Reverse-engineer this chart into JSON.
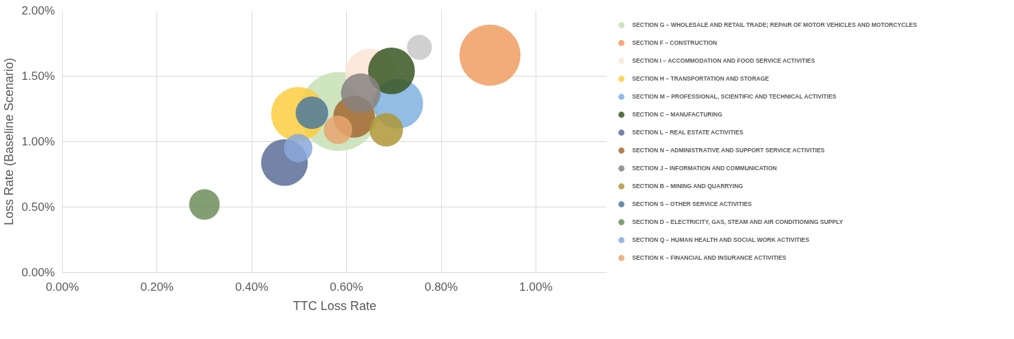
{
  "chart_data": {
    "type": "bubble",
    "xlabel": "TTC Loss Rate",
    "ylabel": "Loss Rate (Baseline Scenario)",
    "xlim": [
      0,
      1.15
    ],
    "ylim": [
      0,
      2
    ],
    "xticks": [
      {
        "value": 0,
        "label": "0.00%"
      },
      {
        "value": 0.2,
        "label": "0.20%"
      },
      {
        "value": 0.4,
        "label": "0.40%"
      },
      {
        "value": 0.6,
        "label": "0.60%"
      },
      {
        "value": 0.8,
        "label": "0.80%"
      },
      {
        "value": 1.0,
        "label": "1.00%"
      }
    ],
    "yticks": [
      {
        "value": 0,
        "label": "0.00%"
      },
      {
        "value": 0.5,
        "label": "0.50%"
      },
      {
        "value": 1.0,
        "label": "1.00%"
      },
      {
        "value": 1.5,
        "label": "1.50%"
      },
      {
        "value": 2.0,
        "label": "2.00%"
      }
    ],
    "grid": true,
    "legend": "right",
    "series": [
      {
        "name": "SECTION G – WHOLESALE AND RETAIL TRADE; REPAIR OF MOTOR VEHICLES AND MOTORCYCLES",
        "color": "#c5e0b4",
        "x": [
          0.584
        ],
        "values": [
          1.23
        ],
        "sizes": [
          1
        ]
      },
      {
        "name": "SECTION F – CONSTRUCTION",
        "color": "#f09d62",
        "x": [
          0.903
        ],
        "values": [
          1.66
        ],
        "sizes": [
          0.6
        ]
      },
      {
        "name": "SECTION I – ACCOMMODATION AND FOOD SERVICE ACTIVITIES",
        "color": "#fbe5d6",
        "x": [
          0.65
        ],
        "values": [
          1.52
        ],
        "sizes": [
          0.4
        ]
      },
      {
        "name": "SECTION H – TRANSPORTATION AND STORAGE",
        "color": "#fdcd3f",
        "x": [
          0.498
        ],
        "values": [
          1.21
        ],
        "sizes": [
          0.47
        ]
      },
      {
        "name": "SECTION M – PROFESSIONAL, SCIENTIFIC AND TECHNICAL ACTIVITIES",
        "color": "#7fb2e0",
        "x": [
          0.709
        ],
        "values": [
          1.29
        ],
        "sizes": [
          0.4
        ]
      },
      {
        "name": "SECTION C – MANUFACTURING",
        "color": "#385723",
        "x": [
          0.695
        ],
        "values": [
          1.54
        ],
        "sizes": [
          0.35
        ]
      },
      {
        "name": "SECTION L – REAL ESTATE ACTIVITIES",
        "color": "#5b6f99",
        "x": [
          0.469
        ],
        "values": [
          0.84
        ],
        "sizes": [
          0.35
        ]
      },
      {
        "name": "SECTION N – ADMINISTRATIVE AND SUPPORT SERVICE ACTIVITIES",
        "color": "#a46831",
        "x": [
          0.616
        ],
        "values": [
          1.19
        ],
        "sizes": [
          0.28
        ]
      },
      {
        "name": "SECTION J – INFORMATION AND COMMUNICATION",
        "color": "#878380",
        "x": [
          0.63
        ],
        "values": [
          1.37
        ],
        "sizes": [
          0.25
        ]
      },
      {
        "name": "SECTION B – MINING AND QUARRYING",
        "color": "#ae9737",
        "x": [
          0.684
        ],
        "values": [
          1.09
        ],
        "sizes": [
          0.18
        ]
      },
      {
        "name": "SECTION S – OTHER SERVICE ACTIVITIES",
        "color": "#4e7a9e",
        "x": [
          0.527
        ],
        "values": [
          1.22
        ],
        "sizes": [
          0.17
        ]
      },
      {
        "name": "SECTION D – ELECTRICITY, GAS, STEAM AND AIR CONDITIONING SUPPLY",
        "color": "#6f8d5c",
        "x": [
          0.3
        ],
        "values": [
          0.52
        ],
        "sizes": [
          0.15
        ]
      },
      {
        "name": "SECTION Q – HUMAN HEALTH AND SOCIAL WORK ACTIVITIES",
        "color": "#8aa8dc",
        "x": [
          0.498
        ],
        "values": [
          0.95
        ],
        "sizes": [
          0.13
        ]
      },
      {
        "name": "SECTION K – FINANCIAL AND INSURANCE ACTIVITIES",
        "color": "#e8a670",
        "x": [
          0.582
        ],
        "values": [
          1.09
        ],
        "sizes": [
          0.13
        ]
      },
      {
        "color": "#c8c8c8",
        "x": [
          0.754
        ],
        "values": [
          1.72
        ],
        "sizes": [
          0.1
        ]
      }
    ]
  }
}
